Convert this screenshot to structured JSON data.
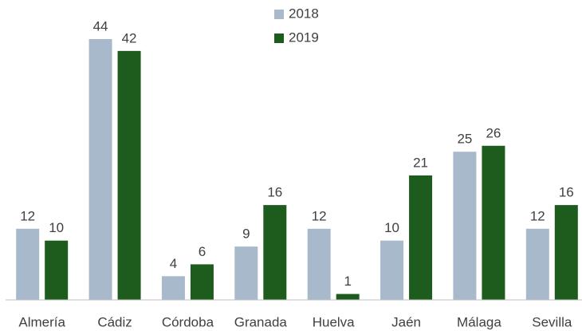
{
  "chart_data": {
    "type": "bar",
    "categories": [
      "Almería",
      "Cádiz",
      "Córdoba",
      "Granada",
      "Huelva",
      "Jaén",
      "Málaga",
      "Sevilla"
    ],
    "series": [
      {
        "name": "2018",
        "color": "#a9b9cc",
        "values": [
          12,
          44,
          4,
          9,
          12,
          10,
          25,
          12
        ]
      },
      {
        "name": "2019",
        "color": "#1e5c1e",
        "values": [
          10,
          42,
          6,
          16,
          1,
          21,
          26,
          16
        ]
      }
    ],
    "legend": "top"
  }
}
